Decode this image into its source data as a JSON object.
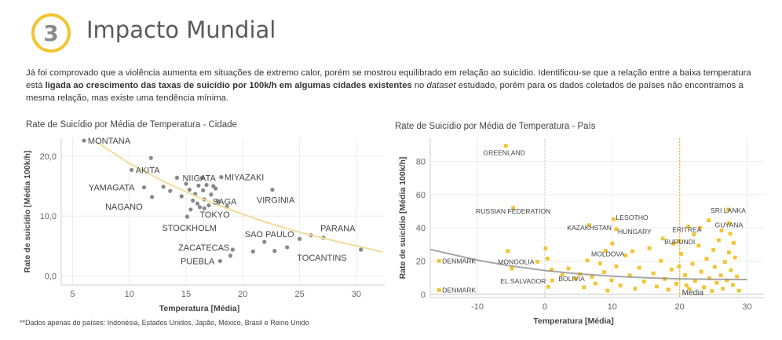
{
  "header": {
    "step_number": "3",
    "title": "Impacto Mundial"
  },
  "intro": {
    "part1": "Já foi comprovado que a violência aumenta em situações de extremo calor, porém se mostrou equilibrado em relação ao suicídio. Identificou-se que a relação entre a baixa temperatura está ",
    "bold": "ligada ao crescimento das taxas de suicídio por 100k/h em algumas cidades existentes",
    "part2": " no ",
    "italic": "dataset",
    "part3": " estudado, porém para os dados coletados de países não encontramos a mesma relação, mas existe uma tendência mínima."
  },
  "footnote": "**Dados apenas do países: Indonésia, Estados Unidos, Japão, México, Brasil e Reino Unido",
  "colors": {
    "accent": "#f2c530",
    "point_city": "#888888",
    "point_country": "#f2c530",
    "trend_city": "#f2dc9a",
    "trend_country": "#888888",
    "mean_line": "#e8b830"
  },
  "chart_data": [
    {
      "type": "scatter",
      "title": "Rate de Suicídio por Média de Temperatura - Cidade",
      "xlabel": "Temperatura [Média]",
      "ylabel": "Rate de suicídio [Média 100k/h]",
      "xlim": [
        4,
        32.5
      ],
      "ylim": [
        -1.5,
        23
      ],
      "xticks": [
        5,
        10,
        15,
        20,
        25,
        30
      ],
      "yticks": [
        0,
        10,
        20
      ],
      "ytick_labels": [
        "0,0",
        "10,0",
        "20,0"
      ],
      "grid": true,
      "trend": "exponential",
      "trend_points": [
        [
          7,
          22.5
        ],
        [
          10,
          18.8
        ],
        [
          13,
          15.8
        ],
        [
          16,
          13.2
        ],
        [
          19,
          11.0
        ],
        [
          22,
          9.0
        ],
        [
          25,
          7.3
        ],
        [
          28,
          5.9
        ],
        [
          31,
          4.6
        ],
        [
          32.3,
          4.0
        ]
      ],
      "points": [
        {
          "x": 6.0,
          "y": 22.6,
          "label": "MONTANA"
        },
        {
          "x": 10.2,
          "y": 17.7,
          "label": "AKITA"
        },
        {
          "x": 11.3,
          "y": 14.8,
          "label": "YAMAGATA"
        },
        {
          "x": 14.2,
          "y": 16.4,
          "label": "NIIGATA"
        },
        {
          "x": 18.1,
          "y": 16.5,
          "label": "MIYAZAKI"
        },
        {
          "x": 12.0,
          "y": 13.2,
          "label": "NAGANO"
        },
        {
          "x": 17.2,
          "y": 13.6,
          "label": "SAGA"
        },
        {
          "x": 16.2,
          "y": 11.5,
          "label": "TOKYO"
        },
        {
          "x": 22.6,
          "y": 14.4,
          "label": "VIRGINIA"
        },
        {
          "x": 15.1,
          "y": 9.9,
          "label": "STOCKHOLM"
        },
        {
          "x": 21.9,
          "y": 5.7,
          "label": "SAO PAULO"
        },
        {
          "x": 26.0,
          "y": 6.8,
          "label": "PARANA"
        },
        {
          "x": 19.1,
          "y": 4.4,
          "label": "ZACATECAS"
        },
        {
          "x": 30.4,
          "y": 4.4,
          "label": "TOCANTINS"
        },
        {
          "x": 18.0,
          "y": 2.5,
          "label": "PUEBLA"
        },
        {
          "x": 11.9,
          "y": 19.7
        },
        {
          "x": 13.0,
          "y": 14.9
        },
        {
          "x": 13.6,
          "y": 14.2
        },
        {
          "x": 15.0,
          "y": 15.4
        },
        {
          "x": 15.3,
          "y": 14.4
        },
        {
          "x": 15.8,
          "y": 13.7
        },
        {
          "x": 16.1,
          "y": 15.1
        },
        {
          "x": 16.5,
          "y": 14.3
        },
        {
          "x": 16.8,
          "y": 15.2
        },
        {
          "x": 17.4,
          "y": 15.0
        },
        {
          "x": 17.6,
          "y": 14.6
        },
        {
          "x": 15.6,
          "y": 12.6
        },
        {
          "x": 16.0,
          "y": 12.1
        },
        {
          "x": 16.6,
          "y": 12.8
        },
        {
          "x": 17.0,
          "y": 11.8
        },
        {
          "x": 15.4,
          "y": 11.1
        },
        {
          "x": 17.8,
          "y": 12.5
        },
        {
          "x": 18.6,
          "y": 11.6
        },
        {
          "x": 16.4,
          "y": 16.4
        },
        {
          "x": 14.6,
          "y": 13.3
        },
        {
          "x": 23.9,
          "y": 4.8
        },
        {
          "x": 25.0,
          "y": 6.2
        },
        {
          "x": 27.1,
          "y": 6.4
        },
        {
          "x": 22.8,
          "y": 4.2
        },
        {
          "x": 20.9,
          "y": 4.1
        },
        {
          "x": 18.9,
          "y": 3.4
        },
        {
          "x": 16.6,
          "y": 11.3
        }
      ]
    },
    {
      "type": "scatter",
      "title": "Rate de Suicídio por Média de Temperatura - País",
      "xlabel": "Temperatura [Média]",
      "ylabel": "Rate de suicídio [Média 100k/h]",
      "xlim": [
        -17,
        32.5
      ],
      "ylim": [
        -2,
        94
      ],
      "xticks": [
        -10,
        0,
        10,
        20,
        30
      ],
      "yticks": [
        0,
        20,
        40,
        60,
        80
      ],
      "grid": true,
      "mean_line": {
        "x": 20,
        "label": "Média"
      },
      "trend": "polynomial",
      "trend_points": [
        [
          -17,
          27.0
        ],
        [
          -10,
          20.5
        ],
        [
          -5,
          17.0
        ],
        [
          0,
          14.3
        ],
        [
          5,
          12.3
        ],
        [
          10,
          10.9
        ],
        [
          15,
          9.9
        ],
        [
          20,
          9.3
        ],
        [
          25,
          9.0
        ],
        [
          30,
          8.9
        ]
      ],
      "points": [
        {
          "x": -5.8,
          "y": 89.4,
          "label": "GREENLAND"
        },
        {
          "x": -4.7,
          "y": 52.0,
          "label": "RUSSIAN FEDERATION"
        },
        {
          "x": 6.6,
          "y": 41.6,
          "label": "KAZAKHSTAN"
        },
        {
          "x": 10.2,
          "y": 45.2,
          "label": "LESOTHO"
        },
        {
          "x": 10.6,
          "y": 39.2,
          "label": "HUNGARY"
        },
        {
          "x": 21.3,
          "y": 40.8,
          "label": "ERITREA"
        },
        {
          "x": 27.2,
          "y": 51.0,
          "label": "SRI LANKA"
        },
        {
          "x": 27.3,
          "y": 42.7,
          "label": "GUYANA"
        },
        {
          "x": 20.0,
          "y": 32.1,
          "label": "BURUNDI"
        },
        {
          "x": 9.0,
          "y": 26.2,
          "label": "MOLDOVA"
        },
        {
          "x": -1.1,
          "y": 19.6,
          "label": "MONGOLIA"
        },
        {
          "x": -15.7,
          "y": 20.1,
          "label": "DENMARK"
        },
        {
          "x": -15.7,
          "y": 2.5,
          "label": "DENMARK"
        },
        {
          "x": 1.1,
          "y": 8.3,
          "label": "EL SALVADOR"
        },
        {
          "x": 2.6,
          "y": 11.7,
          "label": "BOLIVIA"
        },
        {
          "x": -5.5,
          "y": 26.0
        },
        {
          "x": -4.9,
          "y": 15.5
        },
        {
          "x": 0.1,
          "y": 27.6
        },
        {
          "x": 0.4,
          "y": 21.5
        },
        {
          "x": 0.5,
          "y": 4.5
        },
        {
          "x": 1.0,
          "y": 14.8
        },
        {
          "x": 3.5,
          "y": 15.5
        },
        {
          "x": 4.5,
          "y": 9.5
        },
        {
          "x": 5.2,
          "y": 12.2
        },
        {
          "x": 5.8,
          "y": 4.2
        },
        {
          "x": 6.3,
          "y": 20.4
        },
        {
          "x": 7.0,
          "y": 10.6
        },
        {
          "x": 7.5,
          "y": 6.5
        },
        {
          "x": 8.2,
          "y": 18.6
        },
        {
          "x": 8.8,
          "y": 13.3
        },
        {
          "x": 9.3,
          "y": 2.2
        },
        {
          "x": 9.9,
          "y": 8.4
        },
        {
          "x": 10.6,
          "y": 16.8
        },
        {
          "x": 11.2,
          "y": 5.3
        },
        {
          "x": 12.0,
          "y": 23.4
        },
        {
          "x": 12.6,
          "y": 11.4
        },
        {
          "x": 13.4,
          "y": 3.4
        },
        {
          "x": 14.0,
          "y": 16.0
        },
        {
          "x": 14.7,
          "y": 7.7
        },
        {
          "x": 15.5,
          "y": 27.8
        },
        {
          "x": 16.1,
          "y": 12.6
        },
        {
          "x": 16.6,
          "y": 4.7
        },
        {
          "x": 17.2,
          "y": 20.1
        },
        {
          "x": 17.8,
          "y": 9.2
        },
        {
          "x": 18.3,
          "y": 2.8
        },
        {
          "x": 18.8,
          "y": 14.9
        },
        {
          "x": 19.5,
          "y": 6.3
        },
        {
          "x": 20.2,
          "y": 24.3
        },
        {
          "x": 20.8,
          "y": 11.5
        },
        {
          "x": 21.4,
          "y": 3.2
        },
        {
          "x": 21.9,
          "y": 18.4
        },
        {
          "x": 22.3,
          "y": 8.0
        },
        {
          "x": 22.8,
          "y": 29.3
        },
        {
          "x": 23.2,
          "y": 13.6
        },
        {
          "x": 23.6,
          "y": 4.2
        },
        {
          "x": 24.0,
          "y": 21.4
        },
        {
          "x": 24.4,
          "y": 9.7
        },
        {
          "x": 24.8,
          "y": 2.0
        },
        {
          "x": 25.2,
          "y": 16.5
        },
        {
          "x": 25.5,
          "y": 6.9
        },
        {
          "x": 25.8,
          "y": 32.6
        },
        {
          "x": 26.1,
          "y": 11.4
        },
        {
          "x": 26.4,
          "y": 3.4
        },
        {
          "x": 26.7,
          "y": 19.5
        },
        {
          "x": 27.0,
          "y": 8.4
        },
        {
          "x": 27.3,
          "y": 25.2
        },
        {
          "x": 27.6,
          "y": 14.5
        },
        {
          "x": 27.9,
          "y": 5.6
        },
        {
          "x": 28.2,
          "y": 22.1
        },
        {
          "x": 28.5,
          "y": 10.7
        },
        {
          "x": 28.8,
          "y": 2.2
        },
        {
          "x": 26.2,
          "y": 38.4
        },
        {
          "x": 24.3,
          "y": 44.5
        },
        {
          "x": 22.1,
          "y": 36.0
        },
        {
          "x": 19.1,
          "y": 30.5
        },
        {
          "x": 17.5,
          "y": 33.6
        },
        {
          "x": 23.0,
          "y": 40.0
        },
        {
          "x": 25.0,
          "y": 26.7
        },
        {
          "x": 28.0,
          "y": 30.9
        },
        {
          "x": 27.5,
          "y": 36.5
        },
        {
          "x": 21.0,
          "y": 5.4
        },
        {
          "x": 19.9,
          "y": 16.7
        },
        {
          "x": 13.0,
          "y": 25.9
        },
        {
          "x": 10.0,
          "y": 30.6
        }
      ]
    }
  ]
}
